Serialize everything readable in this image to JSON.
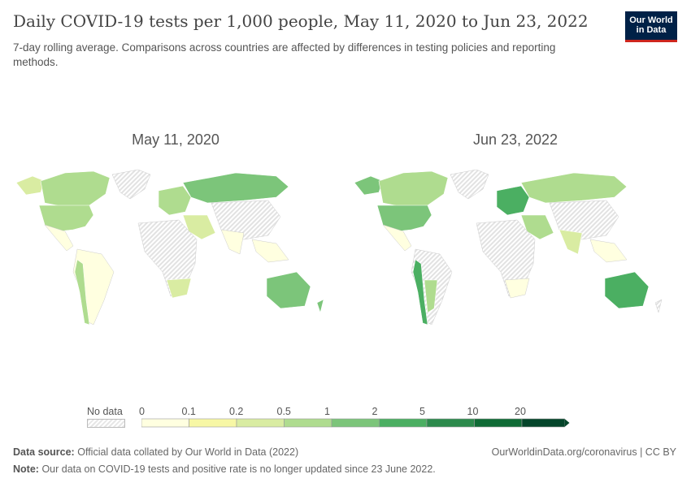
{
  "header": {
    "title": "Daily COVID-19 tests per 1,000 people, May 11, 2020 to Jun 23, 2022",
    "subtitle": "7-day rolling average. Comparisons across countries are affected by differences in testing policies and reporting methods.",
    "logo_line1": "Our World",
    "logo_line2": "in Data"
  },
  "maps": [
    {
      "date": "May 11, 2020"
    },
    {
      "date": "Jun 23, 2022"
    }
  ],
  "legend": {
    "no_data_label": "No data",
    "ticks": [
      "0",
      "0.1",
      "0.2",
      "0.5",
      "1",
      "2",
      "5",
      "10",
      "20"
    ],
    "colors": [
      "#ffffe0",
      "#f7f7a5",
      "#d9eca2",
      "#afdc8f",
      "#7cc57a",
      "#4baf62",
      "#2c8a4c",
      "#0f6b35",
      "#04452a"
    ],
    "no_data_color": "#e6e6e6"
  },
  "footer": {
    "source_label": "Data source:",
    "source_text": "Official data collated by Our World in Data (2022)",
    "url": "OurWorldinData.org/coronavirus | CC BY",
    "note_label": "Note:",
    "note_text": "Our data on COVID-19 tests and positive rate is no longer updated since 23 June 2022."
  }
}
